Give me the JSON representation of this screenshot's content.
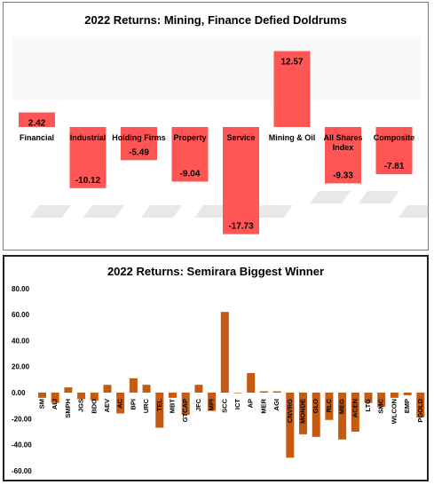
{
  "colors": {
    "bar_top": "#ff5555",
    "bar_bottom": "#c55a11"
  },
  "chart_data": [
    {
      "type": "bar",
      "title": "2022 Returns: Mining, Finance Defied Doldrums",
      "categories": [
        "Financial",
        "Industrial",
        "Holding Firms",
        "Property",
        "Service",
        "Mining & Oil",
        "All Shares Index",
        "Composite"
      ],
      "category_lines": [
        [
          "Financial"
        ],
        [
          "Industrial"
        ],
        [
          "Holding Firms"
        ],
        [
          "Property"
        ],
        [
          "Service"
        ],
        [
          "Mining & Oil"
        ],
        [
          "All Shares",
          "Index"
        ],
        [
          "Composite"
        ]
      ],
      "values": [
        2.42,
        -10.12,
        -5.49,
        -9.04,
        -17.73,
        12.57,
        -9.33,
        -7.81
      ],
      "value_labels": [
        "2.42",
        "-10.12",
        "-5.49",
        "-9.04",
        "-17.73",
        "12.57",
        "-9.33",
        "-7.81"
      ],
      "data_labels": true,
      "grid": false,
      "ylim": [
        -18,
        13
      ]
    },
    {
      "type": "bar",
      "title": "2022 Returns: Semirara Biggest Winner",
      "categories": [
        "SM",
        "ALI",
        "SMPH",
        "JGS",
        "BDO",
        "AEV",
        "AC",
        "BPI",
        "URC",
        "TEL",
        "MBT",
        "GTCAP",
        "JFC",
        "MPI",
        "SCC",
        "ICT",
        "AP",
        "MER",
        "AGI",
        "CNVRG",
        "MONDE",
        "GLO",
        "RLC",
        "MEG",
        "ACEN",
        "LTG",
        "SMC",
        "WLCON",
        "EMP",
        "PGOLD"
      ],
      "values": [
        -4,
        -8,
        4,
        -5,
        -6,
        6,
        -16,
        11,
        6,
        -27,
        -4,
        -17,
        6,
        -14,
        62,
        0,
        15,
        1,
        1,
        -50,
        -32,
        -34,
        -21,
        -36,
        -30,
        -8,
        -11,
        -4,
        -2,
        -19
      ],
      "ylim": [
        -60,
        80
      ],
      "yticks": [
        "80.00",
        "60.00",
        "40.00",
        "20.00",
        "0.00",
        "-20.00",
        "-40.00",
        "-60.00"
      ],
      "ytick_values": [
        80,
        60,
        40,
        20,
        0,
        -20,
        -40,
        -60
      ],
      "grid": false
    }
  ]
}
